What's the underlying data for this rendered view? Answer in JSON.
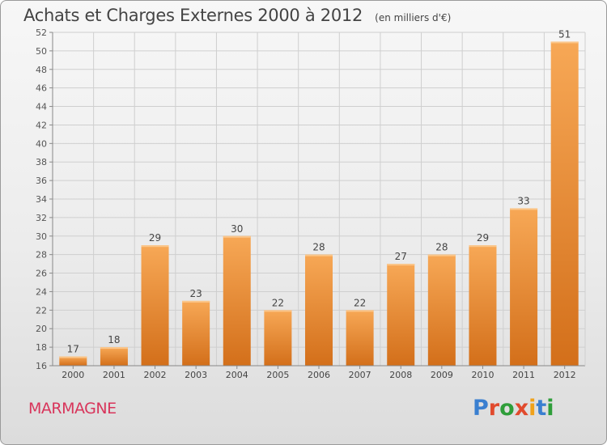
{
  "page": {
    "title": "Achats et Charges Externes 2000 à 2012",
    "unit_label": "(en milliers d'€)",
    "city": "MARMAGNE",
    "logo": {
      "text": "Proxiti",
      "letter_colors": [
        "#3a7fd0",
        "#e14a2d",
        "#2f9e3a",
        "#e14a2d",
        "#f0a21b",
        "#3a7fd0",
        "#2f9e3a"
      ]
    }
  },
  "chart_data": {
    "type": "bar",
    "title": "Achats et Charges Externes 2000 à 2012",
    "subtitle": "(en milliers d'€)",
    "xlabel": "",
    "ylabel": "",
    "categories": [
      "2000",
      "2001",
      "2002",
      "2003",
      "2004",
      "2005",
      "2006",
      "2007",
      "2008",
      "2009",
      "2010",
      "2011",
      "2012"
    ],
    "values": [
      17,
      18,
      29,
      23,
      30,
      22,
      28,
      22,
      27,
      28,
      29,
      33,
      51
    ],
    "ylim": [
      16,
      52
    ],
    "yticks": [
      16,
      18,
      20,
      22,
      24,
      26,
      28,
      30,
      32,
      34,
      36,
      38,
      40,
      42,
      44,
      46,
      48,
      50,
      52
    ],
    "grid": true,
    "legend": "none",
    "colors": {
      "bar_light": "#f7a856",
      "bar_dark": "#d36f1a",
      "grid": "#cfcfcf",
      "axis": "#888888"
    }
  }
}
